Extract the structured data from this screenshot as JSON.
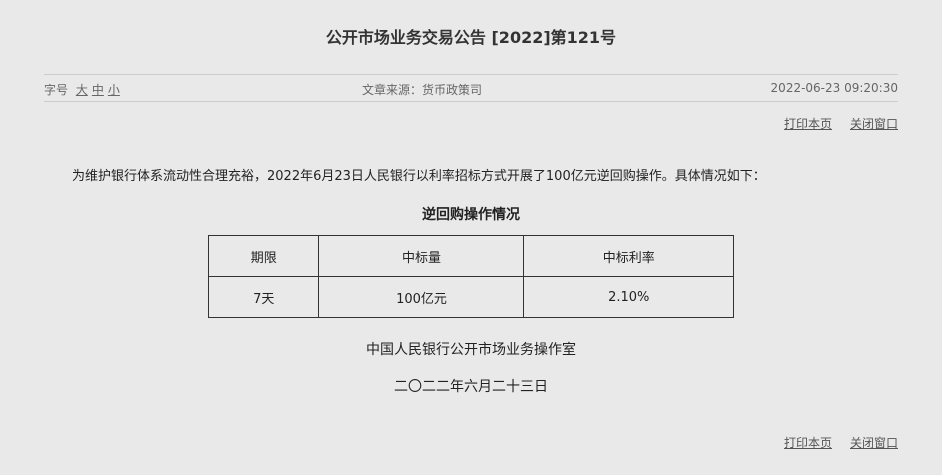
{
  "title": "公开市场业务交易公告 [2022]第121号",
  "bar": {
    "font_label": "字号",
    "font_sizes": [
      "大",
      "中",
      "小"
    ],
    "source": "文章来源：货币政策司",
    "datetime": "2022-06-23 09:20:30"
  },
  "links": {
    "print": "打印本页",
    "close": "关闭窗口"
  },
  "paragraph": "为维护银行体系流动性合理充裕，2022年6月23日人民银行以利率招标方式开展了100亿元逆回购操作。具体情况如下：",
  "table": {
    "caption": "逆回购操作情况",
    "headers": [
      "期限",
      "中标量",
      "中标利率"
    ],
    "rows": [
      [
        "7天",
        "100亿元",
        "2.10%"
      ]
    ]
  },
  "signature": "中国人民银行公开市场业务操作室",
  "date": "二〇二二年六月二十三日"
}
